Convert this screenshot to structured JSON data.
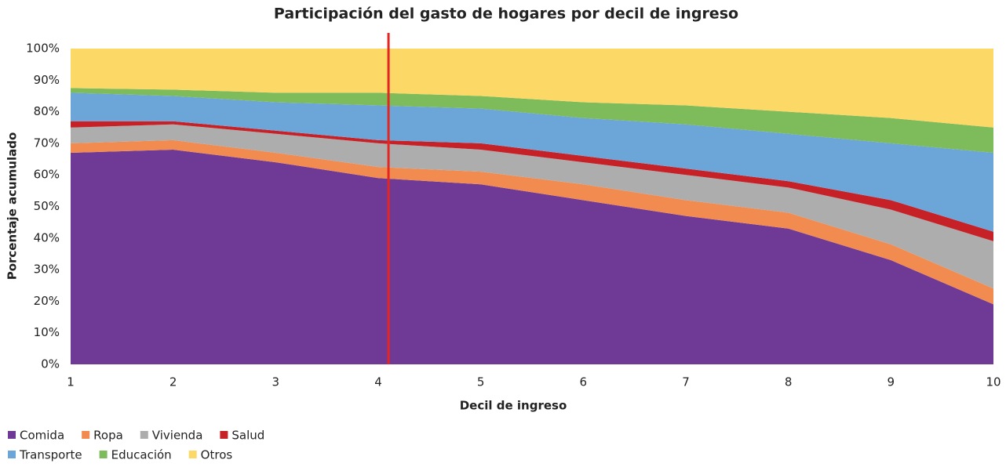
{
  "chart_data": {
    "type": "stacked_area",
    "title": "Participación del gasto de hogares por decil de ingreso",
    "x_label": "Decil de ingreso",
    "y_label": "Porcentaje acumulado",
    "x": [
      1,
      2,
      3,
      4,
      5,
      6,
      7,
      8,
      9,
      10
    ],
    "xlim": [
      1,
      10
    ],
    "xticks": [
      1,
      2,
      3,
      4,
      5,
      6,
      7,
      8,
      9,
      10
    ],
    "ylim": [
      0,
      100
    ],
    "yticks": [
      {
        "value": 0,
        "label": "0%"
      },
      {
        "value": 10,
        "label": "10%"
      },
      {
        "value": 20,
        "label": "20%"
      },
      {
        "value": 30,
        "label": "30%"
      },
      {
        "value": 40,
        "label": "40%"
      },
      {
        "value": 50,
        "label": "50%"
      },
      {
        "value": 60,
        "label": "60%"
      },
      {
        "value": 70,
        "label": "70%"
      },
      {
        "value": 80,
        "label": "80%"
      },
      {
        "value": 90,
        "label": "90%"
      },
      {
        "value": 100,
        "label": "100%"
      }
    ],
    "series": [
      {
        "name": "Comida",
        "color": "#6f3996",
        "values": [
          67,
          68,
          64,
          59,
          57,
          52,
          47,
          43,
          33,
          19
        ]
      },
      {
        "name": "Ropa",
        "color": "#f28b50",
        "values": [
          3,
          3,
          3,
          3.5,
          4,
          5,
          5,
          5,
          5,
          5
        ]
      },
      {
        "name": "Vivienda",
        "color": "#adadad",
        "values": [
          5,
          5,
          6,
          7.5,
          7,
          7,
          8,
          8,
          11,
          15
        ]
      },
      {
        "name": "Salud",
        "color": "#c62127",
        "values": [
          2,
          1,
          1,
          1,
          2,
          2,
          2,
          2,
          3,
          3
        ]
      },
      {
        "name": "Transporte",
        "color": "#6ca6d9",
        "values": [
          9,
          8,
          9,
          11,
          11,
          12,
          14,
          15,
          18,
          25
        ]
      },
      {
        "name": "Educación",
        "color": "#7dbb5b",
        "values": [
          1.5,
          2,
          3,
          4,
          4,
          5,
          6,
          7,
          8,
          8
        ]
      },
      {
        "name": "Otros",
        "color": "#fcd866",
        "values": [
          12.5,
          13,
          14,
          14,
          15,
          17,
          18,
          20,
          22,
          25
        ]
      }
    ],
    "reference_line": {
      "x": 4.1,
      "color": "#e52521"
    },
    "legend": "bottom-left"
  }
}
